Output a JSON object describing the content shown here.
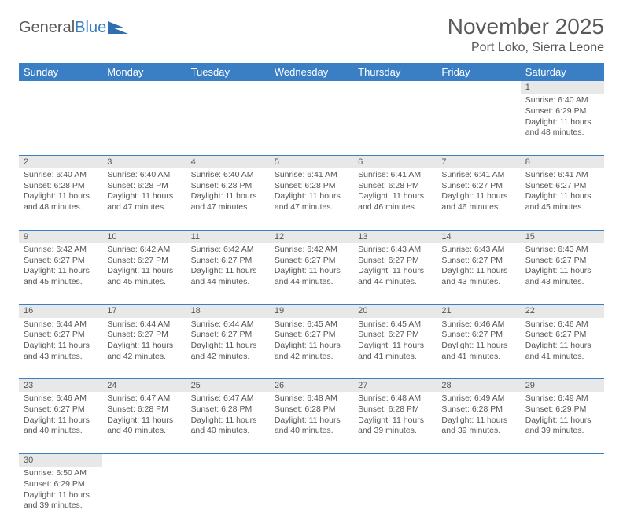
{
  "logo": {
    "text1": "General",
    "text2": "Blue"
  },
  "title": "November 2025",
  "subtitle": "Port Loko, Sierra Leone",
  "colors": {
    "header_bg": "#3a7fc4",
    "header_fg": "#ffffff",
    "daynum_bg": "#e8e8e8",
    "border": "#3a7fc4",
    "text": "#555555",
    "title_color": "#595959"
  },
  "weekdays": [
    "Sunday",
    "Monday",
    "Tuesday",
    "Wednesday",
    "Thursday",
    "Friday",
    "Saturday"
  ],
  "weeks": [
    [
      null,
      null,
      null,
      null,
      null,
      null,
      {
        "n": "1",
        "sr": "6:40 AM",
        "ss": "6:29 PM",
        "dl": "11 hours and 48 minutes."
      }
    ],
    [
      {
        "n": "2",
        "sr": "6:40 AM",
        "ss": "6:28 PM",
        "dl": "11 hours and 48 minutes."
      },
      {
        "n": "3",
        "sr": "6:40 AM",
        "ss": "6:28 PM",
        "dl": "11 hours and 47 minutes."
      },
      {
        "n": "4",
        "sr": "6:40 AM",
        "ss": "6:28 PM",
        "dl": "11 hours and 47 minutes."
      },
      {
        "n": "5",
        "sr": "6:41 AM",
        "ss": "6:28 PM",
        "dl": "11 hours and 47 minutes."
      },
      {
        "n": "6",
        "sr": "6:41 AM",
        "ss": "6:28 PM",
        "dl": "11 hours and 46 minutes."
      },
      {
        "n": "7",
        "sr": "6:41 AM",
        "ss": "6:27 PM",
        "dl": "11 hours and 46 minutes."
      },
      {
        "n": "8",
        "sr": "6:41 AM",
        "ss": "6:27 PM",
        "dl": "11 hours and 45 minutes."
      }
    ],
    [
      {
        "n": "9",
        "sr": "6:42 AM",
        "ss": "6:27 PM",
        "dl": "11 hours and 45 minutes."
      },
      {
        "n": "10",
        "sr": "6:42 AM",
        "ss": "6:27 PM",
        "dl": "11 hours and 45 minutes."
      },
      {
        "n": "11",
        "sr": "6:42 AM",
        "ss": "6:27 PM",
        "dl": "11 hours and 44 minutes."
      },
      {
        "n": "12",
        "sr": "6:42 AM",
        "ss": "6:27 PM",
        "dl": "11 hours and 44 minutes."
      },
      {
        "n": "13",
        "sr": "6:43 AM",
        "ss": "6:27 PM",
        "dl": "11 hours and 44 minutes."
      },
      {
        "n": "14",
        "sr": "6:43 AM",
        "ss": "6:27 PM",
        "dl": "11 hours and 43 minutes."
      },
      {
        "n": "15",
        "sr": "6:43 AM",
        "ss": "6:27 PM",
        "dl": "11 hours and 43 minutes."
      }
    ],
    [
      {
        "n": "16",
        "sr": "6:44 AM",
        "ss": "6:27 PM",
        "dl": "11 hours and 43 minutes."
      },
      {
        "n": "17",
        "sr": "6:44 AM",
        "ss": "6:27 PM",
        "dl": "11 hours and 42 minutes."
      },
      {
        "n": "18",
        "sr": "6:44 AM",
        "ss": "6:27 PM",
        "dl": "11 hours and 42 minutes."
      },
      {
        "n": "19",
        "sr": "6:45 AM",
        "ss": "6:27 PM",
        "dl": "11 hours and 42 minutes."
      },
      {
        "n": "20",
        "sr": "6:45 AM",
        "ss": "6:27 PM",
        "dl": "11 hours and 41 minutes."
      },
      {
        "n": "21",
        "sr": "6:46 AM",
        "ss": "6:27 PM",
        "dl": "11 hours and 41 minutes."
      },
      {
        "n": "22",
        "sr": "6:46 AM",
        "ss": "6:27 PM",
        "dl": "11 hours and 41 minutes."
      }
    ],
    [
      {
        "n": "23",
        "sr": "6:46 AM",
        "ss": "6:27 PM",
        "dl": "11 hours and 40 minutes."
      },
      {
        "n": "24",
        "sr": "6:47 AM",
        "ss": "6:28 PM",
        "dl": "11 hours and 40 minutes."
      },
      {
        "n": "25",
        "sr": "6:47 AM",
        "ss": "6:28 PM",
        "dl": "11 hours and 40 minutes."
      },
      {
        "n": "26",
        "sr": "6:48 AM",
        "ss": "6:28 PM",
        "dl": "11 hours and 40 minutes."
      },
      {
        "n": "27",
        "sr": "6:48 AM",
        "ss": "6:28 PM",
        "dl": "11 hours and 39 minutes."
      },
      {
        "n": "28",
        "sr": "6:49 AM",
        "ss": "6:28 PM",
        "dl": "11 hours and 39 minutes."
      },
      {
        "n": "29",
        "sr": "6:49 AM",
        "ss": "6:29 PM",
        "dl": "11 hours and 39 minutes."
      }
    ],
    [
      {
        "n": "30",
        "sr": "6:50 AM",
        "ss": "6:29 PM",
        "dl": "11 hours and 39 minutes."
      },
      null,
      null,
      null,
      null,
      null,
      null
    ]
  ],
  "labels": {
    "sunrise": "Sunrise:",
    "sunset": "Sunset:",
    "daylight": "Daylight:"
  }
}
